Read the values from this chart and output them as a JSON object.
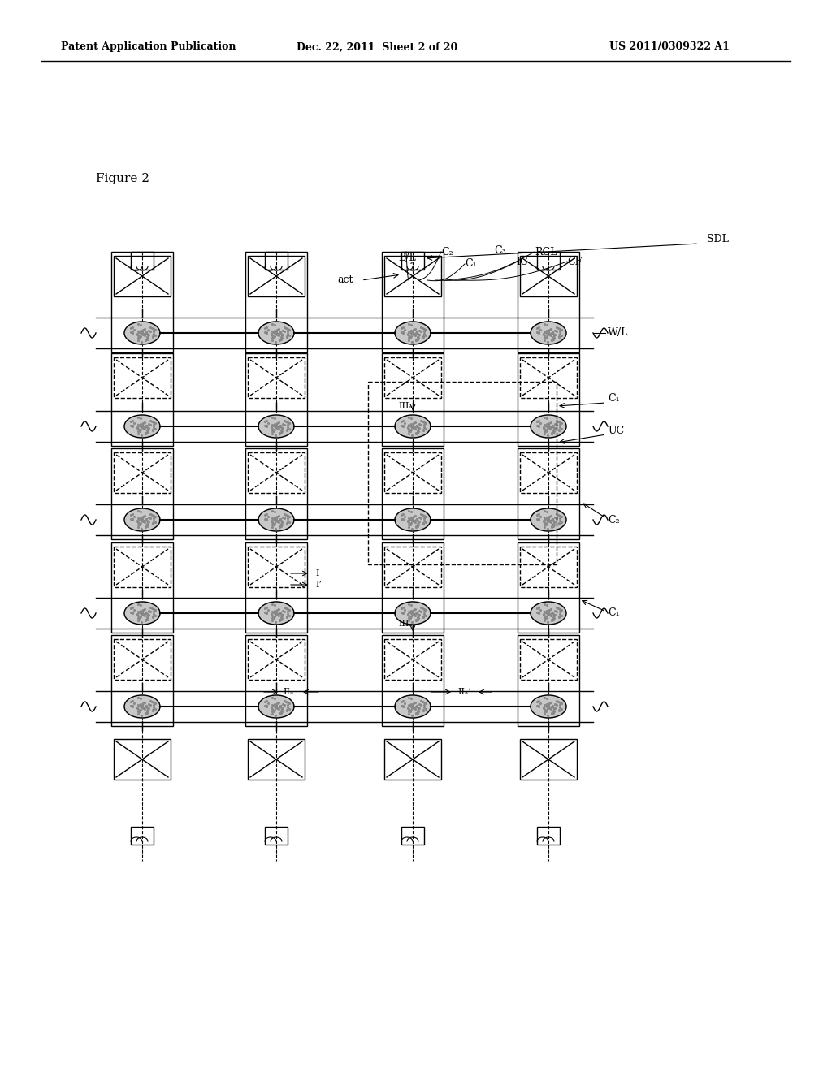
{
  "header_left": "Patent Application Publication",
  "header_mid": "Dec. 22, 2011  Sheet 2 of 20",
  "header_right": "US 2011/0309322 A1",
  "figure_label": "Figure 2",
  "bg_color": "#ffffff",
  "line_color": "#000000",
  "grid_cols": 4,
  "grid_rows": 5,
  "labels": {
    "SDL": "SDL",
    "BL": "B/L",
    "C2_top": "C₂",
    "C1_top": "C₁",
    "C3_top": "C₃",
    "IC": "IC",
    "RCL": "RCL",
    "CF": "CF",
    "act": "act",
    "WL": "W/L",
    "C1_right1": "C₁",
    "UC": "UC",
    "C2_right": "C₂",
    "C1_right2": "C₁",
    "I": "I",
    "Iprime": "I’",
    "IIIa": "IIIₐ",
    "IIIa2": "IIIₐ",
    "IIa": "IIₐ",
    "IIa2": "IIₐ’"
  }
}
